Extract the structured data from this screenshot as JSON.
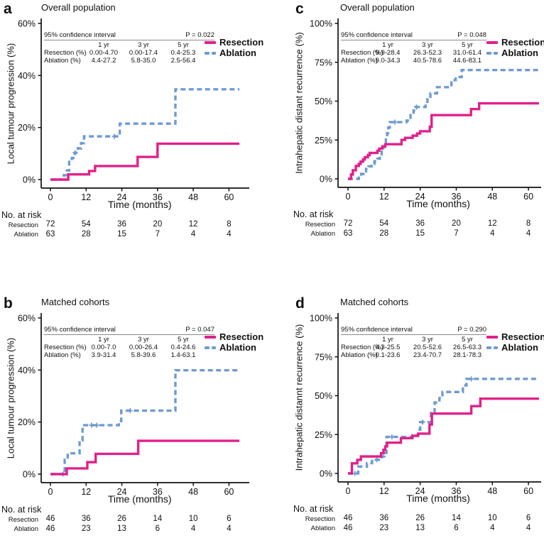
{
  "colors": {
    "resection": "#e0218a",
    "ablation": "#6f9bd1",
    "axis": "#111111"
  },
  "legend": {
    "items": [
      {
        "label": "Resection"
      },
      {
        "label": "Ablation"
      }
    ]
  },
  "panels": [
    {
      "letter": "a",
      "title": "Overall population",
      "ylabel": "Local tumour progression (%)",
      "xlabel": "Time (months)",
      "ci": {
        "header": "95% confidence interval",
        "p_value": "P = 0.022",
        "columns": [
          "1 yr",
          "3 yr",
          "5 yr"
        ],
        "rows": [
          {
            "label": "Resection (%)",
            "values": [
              "0.00-4.70",
              "0.00-17.4",
              "0.4-25.3"
            ]
          },
          {
            "label": "Ablation (%)",
            "values": [
              "4.4-27.2",
              "5.8-35.0",
              "2.5-56.4"
            ]
          }
        ]
      },
      "risk_table": {
        "header": "No. at risk",
        "rows": [
          {
            "label": "Resection",
            "values": [
              "72",
              "54",
              "36",
              "20",
              "12",
              "8"
            ]
          },
          {
            "label": "Ablation",
            "values": [
              "63",
              "28",
              "15",
              "7",
              "4",
              "4"
            ]
          }
        ]
      }
    },
    {
      "letter": "b",
      "title": "Matched cohorts",
      "ylabel": "Local tumour progression (%)",
      "xlabel": "Time (months)",
      "ci": {
        "header": "95% confidence interval",
        "p_value": "P = 0.047",
        "columns": [
          "1 yr",
          "3 yr",
          "5 yr"
        ],
        "rows": [
          {
            "label": "Resection (%)",
            "values": [
              "0.00-7.0",
              "0.00-26.4",
              "0.4-24.6"
            ]
          },
          {
            "label": "Ablation (%)",
            "values": [
              "3.9-31.4",
              "5.8-39.6",
              "1.4-63.1"
            ]
          }
        ]
      },
      "risk_table": {
        "header": "No. at risk",
        "rows": [
          {
            "label": "Resection",
            "values": [
              "46",
              "36",
              "26",
              "14",
              "10",
              "6"
            ]
          },
          {
            "label": "Ablation",
            "values": [
              "46",
              "23",
              "13",
              "6",
              "4",
              "4"
            ]
          }
        ]
      }
    },
    {
      "letter": "c",
      "title": "Overall population",
      "ylabel": "Intrahepatic distant recurrence (%)",
      "xlabel": "Time (months)",
      "ci": {
        "header": "95% confidence interval",
        "p_value": "P = 0.048",
        "columns": [
          "1 yr",
          "3 yr",
          "5 yr"
        ],
        "rows": [
          {
            "label": "Resection (%)",
            "values": [
              "9.9-28.4",
              "26.3-52.3",
              "31.0-61.4"
            ]
          },
          {
            "label": "Ablation (%)",
            "values": [
              "9.0-34.3",
              "40.5-78.6",
              "44.6-83.1"
            ]
          }
        ]
      },
      "risk_table": {
        "header": "No. at risk",
        "rows": [
          {
            "label": "Resection",
            "values": [
              "72",
              "54",
              "36",
              "20",
              "12",
              "8"
            ]
          },
          {
            "label": "Ablation",
            "values": [
              "63",
              "28",
              "15",
              "7",
              "4",
              "4"
            ]
          }
        ]
      }
    },
    {
      "letter": "d",
      "title": "Matched cohorts",
      "ylabel": "Intrahepatic distannt recurrence (%)",
      "xlabel": "Time (months)",
      "ci": {
        "header": "95% confidence interval",
        "p_value": "P = 0.290",
        "columns": [
          "1 yr",
          "3 yr",
          "5 yr"
        ],
        "rows": [
          {
            "label": "Resection (%)",
            "values": [
              "4.3-25.5",
              "20.5-52.6",
              "26.5-63.3"
            ]
          },
          {
            "label": "Ablation (%)",
            "values": [
              "0.1-23.6",
              "23.4-70.7",
              "28.1-78.3"
            ]
          }
        ]
      },
      "risk_table": {
        "header": "No. at risk",
        "rows": [
          {
            "label": "Resection",
            "values": [
              "46",
              "36",
              "26",
              "14",
              "10",
              "6"
            ]
          },
          {
            "label": "Ablation",
            "values": [
              "46",
              "23",
              "13",
              "6",
              "4",
              "4"
            ]
          }
        ]
      }
    }
  ],
  "chart_data": [
    {
      "type": "line",
      "title": "Overall population",
      "ylabel": "Local tumour progression (%)",
      "xlabel": "Time (months)",
      "x_ticks": [
        0,
        12,
        24,
        36,
        48,
        60
      ],
      "x_tick_labels": [
        "0",
        "12",
        "24",
        "36",
        "48",
        "60"
      ],
      "y_ticks": [
        0,
        20,
        40,
        60
      ],
      "y_tick_labels": [
        "0%",
        "20%",
        "40%",
        "60%"
      ],
      "xlim": [
        0,
        63.5
      ],
      "ylim": [
        0,
        62
      ],
      "grid": false,
      "legend_position": "top-right",
      "series": [
        {
          "name": "Ablation",
          "style": "dashed",
          "color_key": "ablation",
          "steps": [
            [
              0,
              0
            ],
            [
              4.5,
              1.7
            ],
            [
              5.5,
              3.5
            ],
            [
              6.3,
              6.8
            ],
            [
              7.2,
              8.3
            ],
            [
              8.2,
              10.3
            ],
            [
              9.2,
              12
            ],
            [
              10.3,
              14
            ],
            [
              11.3,
              16.6
            ],
            [
              23.3,
              21.5
            ],
            [
              42,
              34.7
            ],
            [
              63.5,
              34.7
            ]
          ],
          "censors": [
            [
              8.3,
              10.3
            ],
            [
              21.5,
              16.6
            ]
          ]
        },
        {
          "name": "Resection",
          "style": "solid",
          "color_key": "resection",
          "steps": [
            [
              0,
              0
            ],
            [
              6,
              2
            ],
            [
              13,
              3.3
            ],
            [
              15,
              5.2
            ],
            [
              29.3,
              8.7
            ],
            [
              36,
              13.8
            ],
            [
              63.5,
              13.8
            ]
          ],
          "censors": []
        }
      ]
    },
    {
      "type": "line",
      "title": "Matched cohorts",
      "ylabel": "Local tumour progression (%)",
      "xlabel": "Time (months)",
      "x_ticks": [
        0,
        12,
        24,
        36,
        48,
        60
      ],
      "x_tick_labels": [
        "0",
        "12",
        "24",
        "36",
        "48",
        "60"
      ],
      "y_ticks": [
        0,
        20,
        40,
        60
      ],
      "y_tick_labels": [
        "0%",
        "20%",
        "40%",
        "60%"
      ],
      "xlim": [
        0,
        63.5
      ],
      "ylim": [
        0,
        62
      ],
      "grid": false,
      "legend_position": "top-right",
      "series": [
        {
          "name": "Ablation",
          "style": "dashed",
          "color_key": "ablation",
          "steps": [
            [
              0,
              0
            ],
            [
              4.8,
              5.5
            ],
            [
              5.8,
              8
            ],
            [
              9.8,
              13
            ],
            [
              10.8,
              18.8
            ],
            [
              23,
              20.4
            ],
            [
              23.8,
              24.4
            ],
            [
              42,
              39.9
            ],
            [
              63.5,
              39.9
            ]
          ],
          "censors": [
            [
              4.2,
              0
            ],
            [
              13.8,
              18.8
            ],
            [
              15.6,
              18.8
            ],
            [
              26.8,
              24.4
            ]
          ]
        },
        {
          "name": "Resection",
          "style": "solid",
          "color_key": "resection",
          "steps": [
            [
              0,
              0
            ],
            [
              5.5,
              2.2
            ],
            [
              12.4,
              4.6
            ],
            [
              15.2,
              7.8
            ],
            [
              29.5,
              12.8
            ],
            [
              63.5,
              12.8
            ]
          ],
          "censors": []
        }
      ]
    },
    {
      "type": "line",
      "title": "Overall population",
      "ylabel": "Intrahepatic distant recurrence (%)",
      "xlabel": "Time (months)",
      "x_ticks": [
        0,
        12,
        24,
        36,
        48,
        60
      ],
      "x_tick_labels": [
        "0",
        "12",
        "24",
        "36",
        "48",
        "60"
      ],
      "y_ticks": [
        0,
        25,
        50,
        75,
        100
      ],
      "y_tick_labels": [
        "0%",
        "25%",
        "50%",
        "75%",
        "100%"
      ],
      "xlim": [
        0,
        63.5
      ],
      "ylim": [
        0,
        103
      ],
      "grid": false,
      "legend_position": "top-right",
      "series": [
        {
          "name": "Ablation",
          "style": "dashed",
          "color_key": "ablation",
          "steps": [
            [
              0,
              0
            ],
            [
              3.6,
              1.6
            ],
            [
              4.4,
              3.2
            ],
            [
              5.2,
              4.8
            ],
            [
              6,
              6.4
            ],
            [
              6.8,
              8
            ],
            [
              7.8,
              9.7
            ],
            [
              8.8,
              11.3
            ],
            [
              9.8,
              13
            ],
            [
              10.6,
              15
            ],
            [
              11.2,
              17.5
            ],
            [
              11.8,
              20.5
            ],
            [
              12.2,
              23.5
            ],
            [
              12.6,
              26.5
            ],
            [
              13,
              29.5
            ],
            [
              13.4,
              33
            ],
            [
              13.9,
              36.5
            ],
            [
              19.5,
              37.5
            ],
            [
              20.8,
              41
            ],
            [
              21.8,
              44
            ],
            [
              22.4,
              46.2
            ],
            [
              25.8,
              48
            ],
            [
              26.4,
              52
            ],
            [
              27.4,
              55
            ],
            [
              29.6,
              59
            ],
            [
              34.4,
              63.5
            ],
            [
              35.8,
              65.5
            ],
            [
              37.8,
              70
            ],
            [
              63.5,
              70
            ]
          ],
          "censors": [
            [
              15.6,
              36.5
            ],
            [
              22.8,
              46.2
            ]
          ]
        },
        {
          "name": "Resection",
          "style": "solid",
          "color_key": "resection",
          "steps": [
            [
              0,
              0
            ],
            [
              1,
              2.8
            ],
            [
              1.6,
              5.5
            ],
            [
              2.6,
              8.3
            ],
            [
              3.6,
              9.7
            ],
            [
              4.2,
              11.1
            ],
            [
              5,
              12.5
            ],
            [
              5.6,
              13.9
            ],
            [
              6.6,
              15.3
            ],
            [
              7.2,
              16.7
            ],
            [
              9.8,
              18.1
            ],
            [
              10.4,
              19.5
            ],
            [
              11.4,
              20.9
            ],
            [
              12.4,
              22.3
            ],
            [
              17.8,
              25.1
            ],
            [
              19,
              26.4
            ],
            [
              21.5,
              27.8
            ],
            [
              23,
              29.2
            ],
            [
              24,
              30.6
            ],
            [
              27.2,
              33.5
            ],
            [
              27.8,
              41
            ],
            [
              40.9,
              44.9
            ],
            [
              43.6,
              48.6
            ],
            [
              63.5,
              48.6
            ]
          ],
          "censors": []
        }
      ]
    },
    {
      "type": "line",
      "title": "Matched cohorts",
      "ylabel": "Intrahepatic distannt recurrence (%)",
      "xlabel": "Time (months)",
      "x_ticks": [
        0,
        12,
        24,
        36,
        48,
        60
      ],
      "x_tick_labels": [
        "0",
        "12",
        "24",
        "36",
        "48",
        "60"
      ],
      "y_ticks": [
        0,
        25,
        50,
        75,
        100
      ],
      "y_tick_labels": [
        "0%",
        "25%",
        "50%",
        "75%",
        "100%"
      ],
      "xlim": [
        0,
        63.5
      ],
      "ylim": [
        0,
        103
      ],
      "grid": false,
      "legend_position": "top-right",
      "series": [
        {
          "name": "Ablation",
          "style": "dashed",
          "color_key": "ablation",
          "steps": [
            [
              0,
              0
            ],
            [
              3.4,
              4.4
            ],
            [
              6.3,
              6.6
            ],
            [
              8,
              8.8
            ],
            [
              11.3,
              11
            ],
            [
              12.1,
              13.2
            ],
            [
              12.8,
              23.5
            ],
            [
              21.5,
              24.6
            ],
            [
              23.4,
              28.2
            ],
            [
              24,
              33
            ],
            [
              27.6,
              39
            ],
            [
              28.8,
              45.6
            ],
            [
              30.4,
              48.5
            ],
            [
              31.4,
              52.4
            ],
            [
              38.2,
              56.6
            ],
            [
              39.4,
              60.8
            ],
            [
              63.5,
              60.8
            ]
          ],
          "censors": [
            [
              2.3,
              0
            ],
            [
              9.6,
              8.8
            ],
            [
              14.6,
              23.5
            ],
            [
              24.8,
              33
            ],
            [
              41,
              60.8
            ]
          ]
        },
        {
          "name": "Resection",
          "style": "solid",
          "color_key": "resection",
          "steps": [
            [
              0,
              0
            ],
            [
              1.3,
              6.5
            ],
            [
              3.1,
              8.7
            ],
            [
              4.3,
              10.9
            ],
            [
              11,
              13
            ],
            [
              11.8,
              15.2
            ],
            [
              12.4,
              17.4
            ],
            [
              13,
              19.8
            ],
            [
              17.6,
              22.7
            ],
            [
              21.4,
              24.2
            ],
            [
              23.3,
              25.6
            ],
            [
              27.1,
              31.4
            ],
            [
              27.9,
              38.5
            ],
            [
              41,
              43.3
            ],
            [
              44,
              48.1
            ],
            [
              63.5,
              48.1
            ]
          ],
          "censors": []
        }
      ]
    }
  ]
}
